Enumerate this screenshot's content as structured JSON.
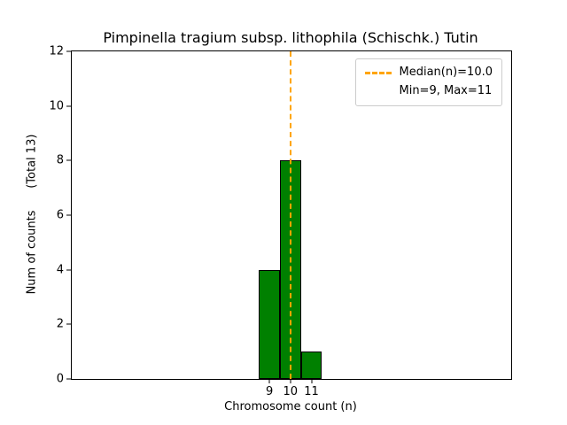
{
  "chart_data": {
    "type": "bar",
    "title": "Pimpinella tragium subsp. lithophila (Schischk.) Tutin",
    "xlabel": "Chromosome count (n)",
    "ylabel": "Num of counts      (Total 13)",
    "categories": [
      9,
      10,
      11
    ],
    "values": [
      4,
      8,
      1
    ],
    "total_counts": 13,
    "bar_width": 1,
    "xlim": [
      -0.4,
      20.5
    ],
    "ylim": [
      0,
      12
    ],
    "xticks": [
      9,
      10,
      11
    ],
    "yticks": [
      0,
      2,
      4,
      6,
      8,
      10,
      12
    ],
    "grid": false,
    "legend_position": "upper right",
    "median_line": {
      "x": 10.0,
      "style": "dashed",
      "color": "#ffa500"
    },
    "colors": {
      "bar_fill": "#008000",
      "bar_edge": "#000000",
      "median": "#ffa500",
      "legend_border": "#cccccc",
      "background": "#ffffff"
    }
  },
  "legend": {
    "median_label": "Median(n)=10.0",
    "minmax_label": "Min=9, Max=11"
  }
}
